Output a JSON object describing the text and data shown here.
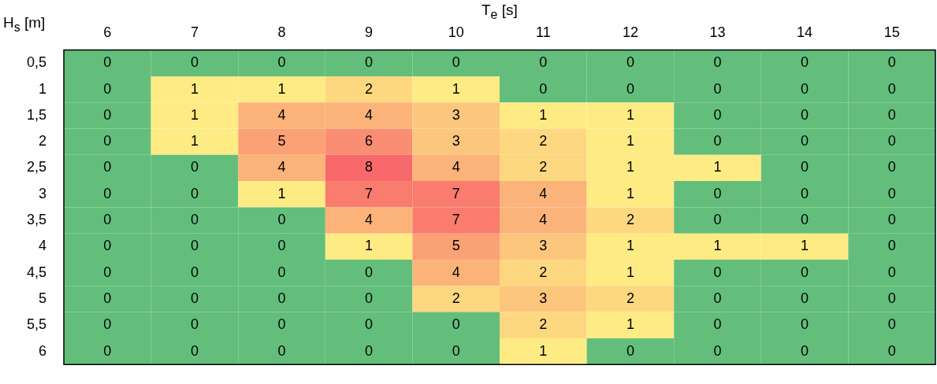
{
  "chart_data": {
    "type": "heatmap",
    "data_labels": true,
    "xlabel": "T$_{e}$ [s]",
    "ylabel": "H$_{s}$ [m]",
    "categories": [
      "6",
      "7",
      "8",
      "9",
      "10",
      "11",
      "12",
      "13",
      "14",
      "15"
    ],
    "y_categories": [
      "0,5",
      "1",
      "1,5",
      "2",
      "2,5",
      "3",
      "3,5",
      "4",
      "4,5",
      "5",
      "5,5",
      "6"
    ],
    "cells": [
      [
        0,
        0,
        0,
        0,
        0,
        0,
        0,
        0,
        0,
        0
      ],
      [
        0,
        1,
        1,
        2,
        1,
        0,
        0,
        0,
        0,
        0
      ],
      [
        0,
        1,
        4,
        4,
        3,
        1,
        1,
        0,
        0,
        0
      ],
      [
        0,
        1,
        5,
        6,
        3,
        2,
        1,
        0,
        0,
        0
      ],
      [
        0,
        0,
        4,
        8,
        4,
        2,
        1,
        1,
        0,
        0
      ],
      [
        0,
        0,
        1,
        7,
        7,
        4,
        1,
        0,
        0,
        0
      ],
      [
        0,
        0,
        0,
        4,
        7,
        4,
        2,
        0,
        0,
        0
      ],
      [
        0,
        0,
        0,
        1,
        5,
        3,
        1,
        1,
        1,
        0
      ],
      [
        0,
        0,
        0,
        0,
        4,
        2,
        1,
        0,
        0,
        0
      ],
      [
        0,
        0,
        0,
        0,
        2,
        3,
        2,
        0,
        0,
        0
      ],
      [
        0,
        0,
        0,
        0,
        0,
        2,
        1,
        0,
        0,
        0
      ],
      [
        0,
        0,
        0,
        0,
        0,
        1,
        0,
        0,
        0,
        0
      ]
    ]
  }
}
